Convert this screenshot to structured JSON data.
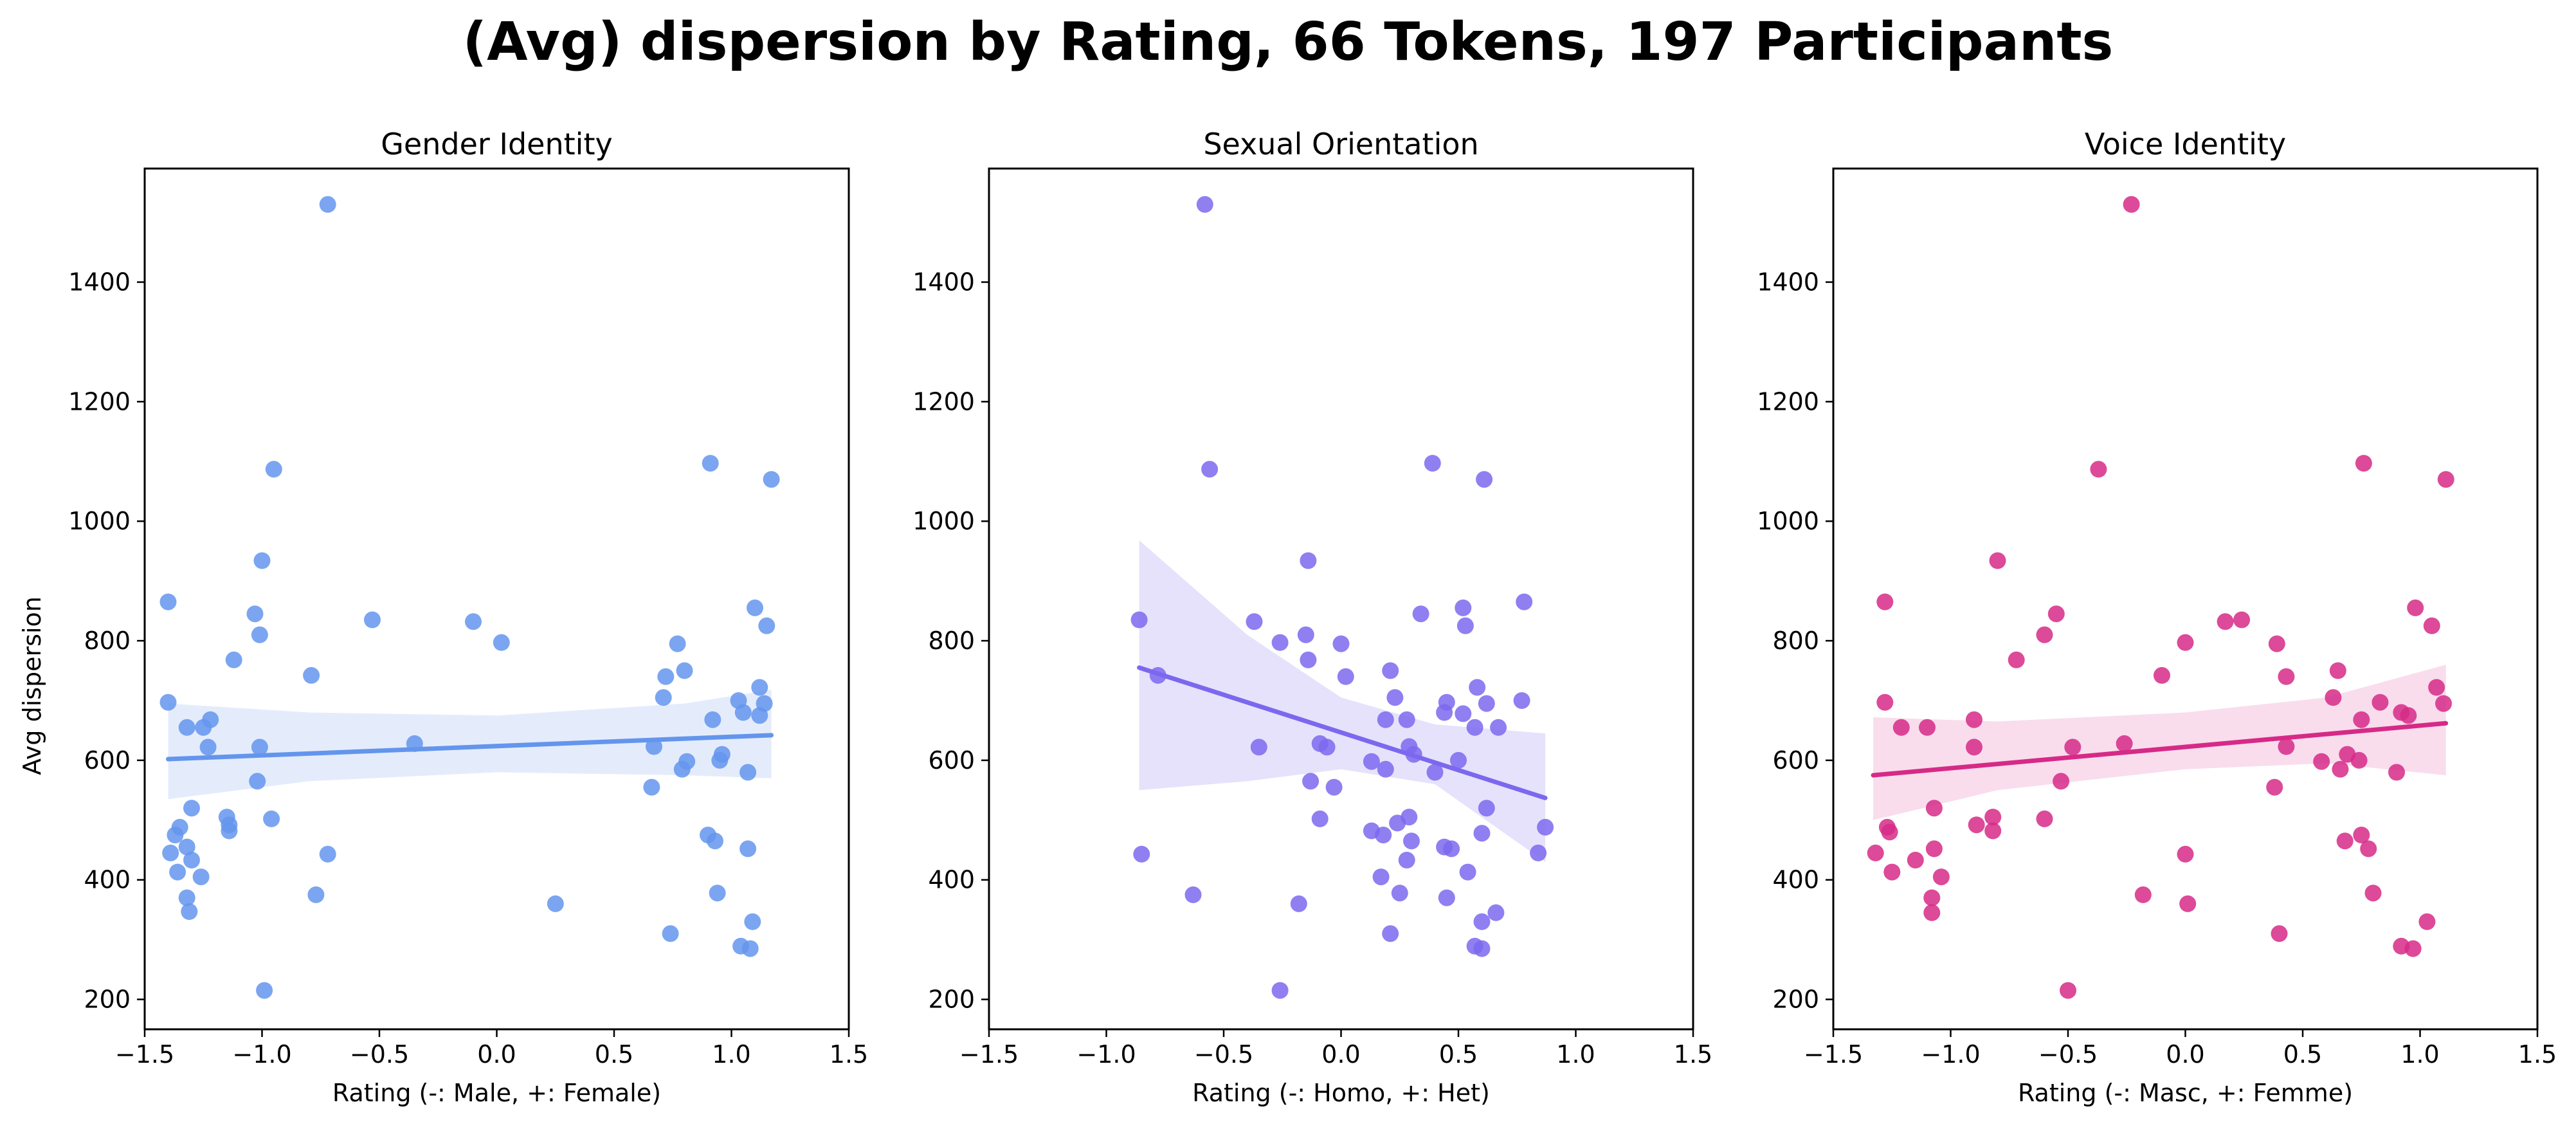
{
  "figure": {
    "title": "(Avg) dispersion by Rating, 66 Tokens, 197 Participants",
    "ylabel": "Avg dispersion"
  },
  "chart_data": [
    {
      "type": "scatter",
      "title": "Gender Identity",
      "xlabel": "Rating (-: Male, +: Female)",
      "ylabel": "Avg dispersion",
      "xlim": [
        -1.5,
        1.5
      ],
      "ylim": [
        150,
        1590
      ],
      "xticks": [
        -1.5,
        -1.0,
        -0.5,
        0.0,
        0.5,
        1.0,
        1.5
      ],
      "xtick_labels": [
        "−1.5",
        "−1.0",
        "−0.5",
        "0.0",
        "0.5",
        "1.0",
        "1.5"
      ],
      "yticks": [
        200,
        400,
        600,
        800,
        1000,
        1200,
        1400
      ],
      "ytick_labels": [
        "200",
        "400",
        "600",
        "800",
        "1000",
        "1200",
        "1400"
      ],
      "color": "#6495ED",
      "band_color": "#e4ecfc",
      "regression": {
        "x": [
          -1.4,
          1.17
        ],
        "y": [
          602,
          642
        ]
      },
      "ci_band": {
        "x": [
          -1.4,
          -0.8,
          0.0,
          0.8,
          1.17
        ],
        "lower": [
          535,
          565,
          580,
          575,
          570
        ],
        "upper": [
          695,
          680,
          675,
          695,
          718
        ]
      },
      "points": [
        {
          "x": -0.72,
          "y": 1530
        },
        {
          "x": -0.95,
          "y": 1087
        },
        {
          "x": 0.91,
          "y": 1097
        },
        {
          "x": 1.17,
          "y": 1070
        },
        {
          "x": -1.0,
          "y": 934
        },
        {
          "x": -1.4,
          "y": 865
        },
        {
          "x": -1.03,
          "y": 845
        },
        {
          "x": -1.01,
          "y": 810
        },
        {
          "x": -0.53,
          "y": 835
        },
        {
          "x": -0.1,
          "y": 832
        },
        {
          "x": 0.02,
          "y": 797
        },
        {
          "x": 1.1,
          "y": 855
        },
        {
          "x": 1.15,
          "y": 825
        },
        {
          "x": 0.77,
          "y": 795
        },
        {
          "x": -1.12,
          "y": 768
        },
        {
          "x": -0.79,
          "y": 742
        },
        {
          "x": 0.8,
          "y": 750
        },
        {
          "x": 0.72,
          "y": 740
        },
        {
          "x": 1.12,
          "y": 722
        },
        {
          "x": 0.71,
          "y": 705
        },
        {
          "x": -1.4,
          "y": 697
        },
        {
          "x": 1.03,
          "y": 700
        },
        {
          "x": 1.14,
          "y": 695
        },
        {
          "x": 1.05,
          "y": 680
        },
        {
          "x": -1.22,
          "y": 668
        },
        {
          "x": -1.32,
          "y": 655
        },
        {
          "x": -1.25,
          "y": 655
        },
        {
          "x": -0.35,
          "y": 628
        },
        {
          "x": 0.92,
          "y": 668
        },
        {
          "x": 1.12,
          "y": 675
        },
        {
          "x": -1.23,
          "y": 622
        },
        {
          "x": -1.01,
          "y": 622
        },
        {
          "x": 0.67,
          "y": 623
        },
        {
          "x": 0.96,
          "y": 610
        },
        {
          "x": 0.95,
          "y": 600
        },
        {
          "x": 0.81,
          "y": 598
        },
        {
          "x": 0.79,
          "y": 585
        },
        {
          "x": 1.07,
          "y": 580
        },
        {
          "x": -1.02,
          "y": 565
        },
        {
          "x": 0.66,
          "y": 555
        },
        {
          "x": -1.3,
          "y": 520
        },
        {
          "x": -1.15,
          "y": 505
        },
        {
          "x": -0.96,
          "y": 502
        },
        {
          "x": -1.14,
          "y": 492
        },
        {
          "x": -1.14,
          "y": 482
        },
        {
          "x": -1.35,
          "y": 488
        },
        {
          "x": -1.37,
          "y": 475
        },
        {
          "x": 0.9,
          "y": 475
        },
        {
          "x": 0.93,
          "y": 465
        },
        {
          "x": -1.32,
          "y": 455
        },
        {
          "x": -1.39,
          "y": 445
        },
        {
          "x": -0.72,
          "y": 443
        },
        {
          "x": 1.07,
          "y": 452
        },
        {
          "x": -1.3,
          "y": 433
        },
        {
          "x": -1.36,
          "y": 413
        },
        {
          "x": -1.26,
          "y": 405
        },
        {
          "x": -0.77,
          "y": 375
        },
        {
          "x": -1.32,
          "y": 370
        },
        {
          "x": 0.94,
          "y": 378
        },
        {
          "x": 0.25,
          "y": 360
        },
        {
          "x": -1.31,
          "y": 347
        },
        {
          "x": 1.09,
          "y": 330
        },
        {
          "x": 0.74,
          "y": 310
        },
        {
          "x": 1.04,
          "y": 289
        },
        {
          "x": 1.08,
          "y": 285
        },
        {
          "x": -0.99,
          "y": 215
        }
      ]
    },
    {
      "type": "scatter",
      "title": "Sexual Orientation",
      "xlabel": "Rating (-: Homo, +: Het)",
      "ylabel": "",
      "xlim": [
        -1.5,
        1.5
      ],
      "ylim": [
        150,
        1590
      ],
      "xticks": [
        -1.5,
        -1.0,
        -0.5,
        0.0,
        0.5,
        1.0,
        1.5
      ],
      "xtick_labels": [
        "−1.5",
        "−1.0",
        "−0.5",
        "0.0",
        "0.5",
        "1.0",
        "1.5"
      ],
      "yticks": [
        200,
        400,
        600,
        800,
        1000,
        1200,
        1400
      ],
      "ytick_labels": [
        "200",
        "400",
        "600",
        "800",
        "1000",
        "1200",
        "1400"
      ],
      "color": "#7B68EE",
      "band_color": "#e6e2fb",
      "regression": {
        "x": [
          -0.86,
          0.87
        ],
        "y": [
          755,
          537
        ]
      },
      "ci_band": {
        "x": [
          -0.86,
          -0.4,
          0.0,
          0.4,
          0.87
        ],
        "lower": [
          550,
          565,
          585,
          560,
          430
        ],
        "upper": [
          968,
          810,
          705,
          660,
          645
        ]
      },
      "points": [
        {
          "x": -0.58,
          "y": 1530
        },
        {
          "x": -0.56,
          "y": 1087
        },
        {
          "x": 0.39,
          "y": 1097
        },
        {
          "x": 0.61,
          "y": 1070
        },
        {
          "x": -0.14,
          "y": 934
        },
        {
          "x": 0.78,
          "y": 865
        },
        {
          "x": -0.86,
          "y": 835
        },
        {
          "x": -0.37,
          "y": 832
        },
        {
          "x": -0.15,
          "y": 810
        },
        {
          "x": 0.52,
          "y": 855
        },
        {
          "x": 0.53,
          "y": 825
        },
        {
          "x": 0.34,
          "y": 845
        },
        {
          "x": -0.26,
          "y": 797
        },
        {
          "x": 0.0,
          "y": 795
        },
        {
          "x": -0.14,
          "y": 768
        },
        {
          "x": -0.78,
          "y": 742
        },
        {
          "x": 0.21,
          "y": 750
        },
        {
          "x": 0.02,
          "y": 740
        },
        {
          "x": 0.58,
          "y": 722
        },
        {
          "x": 0.23,
          "y": 705
        },
        {
          "x": 0.45,
          "y": 697
        },
        {
          "x": 0.62,
          "y": 695
        },
        {
          "x": 0.77,
          "y": 700
        },
        {
          "x": 0.44,
          "y": 680
        },
        {
          "x": 0.52,
          "y": 678
        },
        {
          "x": 0.19,
          "y": 668
        },
        {
          "x": 0.28,
          "y": 668
        },
        {
          "x": 0.67,
          "y": 655
        },
        {
          "x": 0.57,
          "y": 655
        },
        {
          "x": -0.35,
          "y": 622
        },
        {
          "x": -0.09,
          "y": 628
        },
        {
          "x": -0.06,
          "y": 622
        },
        {
          "x": 0.29,
          "y": 623
        },
        {
          "x": 0.31,
          "y": 610
        },
        {
          "x": 0.13,
          "y": 598
        },
        {
          "x": 0.5,
          "y": 600
        },
        {
          "x": 0.19,
          "y": 585
        },
        {
          "x": 0.4,
          "y": 580
        },
        {
          "x": -0.13,
          "y": 565
        },
        {
          "x": -0.03,
          "y": 555
        },
        {
          "x": 0.62,
          "y": 520
        },
        {
          "x": 0.29,
          "y": 505
        },
        {
          "x": -0.09,
          "y": 502
        },
        {
          "x": 0.24,
          "y": 495
        },
        {
          "x": 0.13,
          "y": 482
        },
        {
          "x": 0.18,
          "y": 475
        },
        {
          "x": 0.6,
          "y": 478
        },
        {
          "x": 0.87,
          "y": 488
        },
        {
          "x": 0.3,
          "y": 465
        },
        {
          "x": 0.44,
          "y": 455
        },
        {
          "x": 0.47,
          "y": 452
        },
        {
          "x": -0.85,
          "y": 443
        },
        {
          "x": 0.84,
          "y": 445
        },
        {
          "x": 0.28,
          "y": 433
        },
        {
          "x": 0.17,
          "y": 405
        },
        {
          "x": 0.54,
          "y": 413
        },
        {
          "x": -0.63,
          "y": 375
        },
        {
          "x": 0.25,
          "y": 378
        },
        {
          "x": 0.45,
          "y": 370
        },
        {
          "x": -0.18,
          "y": 360
        },
        {
          "x": 0.66,
          "y": 345
        },
        {
          "x": 0.6,
          "y": 330
        },
        {
          "x": 0.21,
          "y": 310
        },
        {
          "x": 0.57,
          "y": 289
        },
        {
          "x": 0.6,
          "y": 285
        },
        {
          "x": -0.26,
          "y": 215
        }
      ]
    },
    {
      "type": "scatter",
      "title": "Voice Identity",
      "xlabel": "Rating (-: Masc, +: Femme)",
      "ylabel": "",
      "xlim": [
        -1.5,
        1.5
      ],
      "ylim": [
        150,
        1590
      ],
      "xticks": [
        -1.5,
        -1.0,
        -0.5,
        0.0,
        0.5,
        1.0,
        1.5
      ],
      "xtick_labels": [
        "−1.5",
        "−1.0",
        "−0.5",
        "0.0",
        "0.5",
        "1.0",
        "1.5"
      ],
      "yticks": [
        200,
        400,
        600,
        800,
        1000,
        1200,
        1400
      ],
      "ytick_labels": [
        "200",
        "400",
        "600",
        "800",
        "1000",
        "1200",
        "1400"
      ],
      "color": "#D62A87",
      "band_color": "#f9dded",
      "regression": {
        "x": [
          -1.33,
          1.11
        ],
        "y": [
          575,
          662
        ]
      },
      "ci_band": {
        "x": [
          -1.33,
          -0.8,
          0.0,
          0.6,
          1.11
        ],
        "lower": [
          500,
          550,
          585,
          595,
          575
        ],
        "upper": [
          672,
          665,
          680,
          705,
          760
        ]
      },
      "points": [
        {
          "x": -0.23,
          "y": 1530
        },
        {
          "x": -0.37,
          "y": 1087
        },
        {
          "x": 0.76,
          "y": 1097
        },
        {
          "x": 1.11,
          "y": 1070
        },
        {
          "x": -0.8,
          "y": 934
        },
        {
          "x": -1.28,
          "y": 865
        },
        {
          "x": -0.55,
          "y": 845
        },
        {
          "x": 0.17,
          "y": 832
        },
        {
          "x": 0.24,
          "y": 835
        },
        {
          "x": -0.6,
          "y": 810
        },
        {
          "x": 0.0,
          "y": 797
        },
        {
          "x": 0.98,
          "y": 855
        },
        {
          "x": 1.05,
          "y": 825
        },
        {
          "x": 0.39,
          "y": 795
        },
        {
          "x": -0.72,
          "y": 768
        },
        {
          "x": -0.1,
          "y": 742
        },
        {
          "x": 0.43,
          "y": 740
        },
        {
          "x": 0.65,
          "y": 750
        },
        {
          "x": 1.07,
          "y": 722
        },
        {
          "x": 0.63,
          "y": 705
        },
        {
          "x": -1.28,
          "y": 697
        },
        {
          "x": 0.83,
          "y": 697
        },
        {
          "x": 1.1,
          "y": 695
        },
        {
          "x": 0.92,
          "y": 680
        },
        {
          "x": 0.95,
          "y": 675
        },
        {
          "x": -0.9,
          "y": 668
        },
        {
          "x": 0.75,
          "y": 668
        },
        {
          "x": -1.21,
          "y": 655
        },
        {
          "x": -1.1,
          "y": 655
        },
        {
          "x": -0.9,
          "y": 622
        },
        {
          "x": -0.48,
          "y": 622
        },
        {
          "x": -0.26,
          "y": 628
        },
        {
          "x": 0.43,
          "y": 623
        },
        {
          "x": 0.69,
          "y": 610
        },
        {
          "x": 0.74,
          "y": 600
        },
        {
          "x": 0.58,
          "y": 598
        },
        {
          "x": 0.66,
          "y": 585
        },
        {
          "x": 0.9,
          "y": 580
        },
        {
          "x": -0.53,
          "y": 565
        },
        {
          "x": 0.38,
          "y": 555
        },
        {
          "x": -1.07,
          "y": 520
        },
        {
          "x": -0.82,
          "y": 505
        },
        {
          "x": -0.6,
          "y": 502
        },
        {
          "x": -0.89,
          "y": 492
        },
        {
          "x": -1.27,
          "y": 488
        },
        {
          "x": -1.26,
          "y": 480
        },
        {
          "x": -0.82,
          "y": 482
        },
        {
          "x": 0.68,
          "y": 465
        },
        {
          "x": 0.75,
          "y": 475
        },
        {
          "x": -1.07,
          "y": 452
        },
        {
          "x": -1.32,
          "y": 445
        },
        {
          "x": 0.0,
          "y": 443
        },
        {
          "x": 0.78,
          "y": 452
        },
        {
          "x": -1.15,
          "y": 433
        },
        {
          "x": -1.25,
          "y": 413
        },
        {
          "x": -1.04,
          "y": 405
        },
        {
          "x": -0.18,
          "y": 375
        },
        {
          "x": -1.08,
          "y": 370
        },
        {
          "x": 0.8,
          "y": 378
        },
        {
          "x": 0.01,
          "y": 360
        },
        {
          "x": -1.08,
          "y": 345
        },
        {
          "x": 1.03,
          "y": 330
        },
        {
          "x": 0.4,
          "y": 310
        },
        {
          "x": 0.92,
          "y": 289
        },
        {
          "x": 0.97,
          "y": 285
        },
        {
          "x": -0.5,
          "y": 215
        }
      ]
    }
  ]
}
